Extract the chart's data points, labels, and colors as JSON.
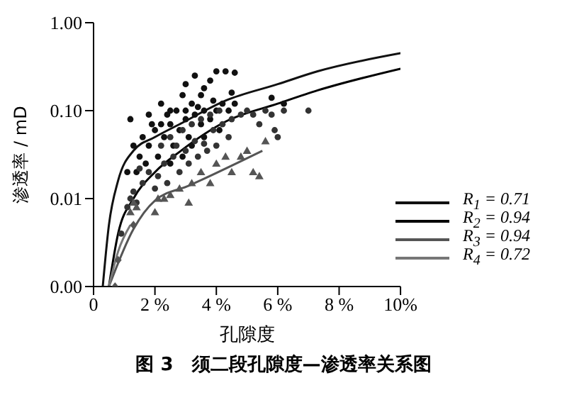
{
  "chart_data": {
    "type": "scatter",
    "title": "图 3　须二段孔隙度—渗透率关系图",
    "xlabel": "孔隙度",
    "ylabel": "渗透率 / mD",
    "log": "y",
    "xlim": [
      0,
      10
    ],
    "ylim": [
      0.001,
      1
    ],
    "xticks": [
      0,
      {
        "value": 2,
        "label": "2 %"
      },
      {
        "value": 4,
        "label": "4 %"
      },
      {
        "value": 6,
        "label": "6 %"
      },
      {
        "value": 8,
        "label": "8 %"
      },
      {
        "value": 10,
        "label": "10%"
      }
    ],
    "yticks": [
      {
        "value": 0.001,
        "label": "0.00"
      },
      {
        "value": 0.01,
        "label": "0.01"
      },
      {
        "value": 0.1,
        "label": "0.10"
      },
      {
        "value": 1,
        "label": "1.00"
      }
    ],
    "grid": false,
    "legend": "right",
    "series": [
      {
        "marker": "circle",
        "color": "#111111",
        "x": [
          1.2,
          1.8,
          2.2,
          2.5,
          3.0,
          3.3,
          3.6,
          3.8,
          4.0,
          4.3,
          4.6,
          2.9,
          3.2,
          3.5,
          1.3,
          1.5,
          1.6,
          1.8,
          2.0,
          2.1,
          2.3,
          2.5,
          2.6,
          2.8,
          3.0,
          3.1,
          3.3,
          3.5,
          3.6,
          3.8,
          4.0,
          4.2,
          4.4,
          4.6,
          2.4,
          2.7,
          3.0,
          3.4,
          3.9,
          1.9,
          2.2,
          2.9,
          3.6,
          4.5,
          5.8,
          6.2,
          1.1,
          1.4,
          1.7,
          2.5,
          3.2,
          4.1
        ],
        "values": [
          0.08,
          0.09,
          0.12,
          0.1,
          0.2,
          0.25,
          0.18,
          0.22,
          0.28,
          0.28,
          0.27,
          0.15,
          0.12,
          0.15,
          0.04,
          0.03,
          0.05,
          0.04,
          0.06,
          0.03,
          0.05,
          0.07,
          0.04,
          0.06,
          0.08,
          0.05,
          0.09,
          0.07,
          0.1,
          0.08,
          0.1,
          0.12,
          0.1,
          0.12,
          0.09,
          0.1,
          0.1,
          0.11,
          0.13,
          0.07,
          0.07,
          0.03,
          0.05,
          0.16,
          0.14,
          0.12,
          0.02,
          0.02,
          0.025,
          0.025,
          0.04,
          0.06
        ]
      },
      {
        "marker": "circle",
        "color": "#333333",
        "x": [
          0.9,
          1.1,
          1.2,
          1.3,
          1.4,
          1.6,
          1.8,
          2.0,
          2.1,
          2.3,
          2.4,
          2.6,
          2.8,
          3.0,
          3.1,
          3.3,
          3.4,
          3.6,
          3.7,
          3.9,
          4.0,
          4.2,
          4.4,
          4.5,
          4.8,
          5.0,
          5.2,
          5.4,
          5.6,
          5.8,
          5.9,
          6.0,
          6.2,
          7.0,
          2.5,
          2.9,
          3.2,
          3.5,
          3.8,
          4.1,
          1.5,
          2.2,
          2.7
        ],
        "values": [
          0.004,
          0.008,
          0.01,
          0.012,
          0.009,
          0.015,
          0.02,
          0.013,
          0.018,
          0.025,
          0.015,
          0.03,
          0.02,
          0.035,
          0.025,
          0.045,
          0.03,
          0.042,
          0.035,
          0.06,
          0.04,
          0.07,
          0.05,
          0.08,
          0.09,
          0.1,
          0.09,
          0.07,
          0.1,
          0.09,
          0.06,
          0.05,
          0.1,
          0.1,
          0.05,
          0.06,
          0.07,
          0.08,
          0.09,
          0.1,
          0.022,
          0.04,
          0.04
        ]
      },
      {
        "marker": "triangle",
        "color": "#555555",
        "x": [
          1.2,
          1.3,
          1.4,
          2.0,
          2.1,
          2.3,
          2.5,
          3.1,
          3.2,
          3.8,
          4.0,
          4.3,
          4.5,
          4.8,
          5.0,
          5.2,
          5.4,
          5.6,
          3.5,
          2.8
        ],
        "values": [
          0.007,
          0.009,
          0.008,
          0.007,
          0.01,
          0.01,
          0.011,
          0.009,
          0.015,
          0.015,
          0.025,
          0.03,
          0.02,
          0.03,
          0.035,
          0.02,
          0.018,
          0.045,
          0.02,
          0.013
        ]
      },
      {
        "marker": "diamond",
        "color": "#555555",
        "x": [
          0.7,
          0.8,
          1.3
        ],
        "values": [
          0.001,
          0.002,
          0.005
        ]
      },
      {
        "type": "line",
        "name": "R$_{1}$ = 0.71",
        "color": "#111111",
        "x": [
          0.3,
          0.5,
          0.8,
          1.3,
          2,
          2.8,
          4.3,
          6,
          7.3,
          10
        ],
        "values": [
          0.001,
          0.005,
          0.016,
          0.035,
          0.05,
          0.07,
          0.13,
          0.2,
          0.28,
          0.45
        ]
      },
      {
        "type": "line",
        "name": "R$_{2}$ = 0.94",
        "color": "#000000",
        "x": [
          0.5,
          0.8,
          1.3,
          2,
          2.8,
          4.3,
          6,
          7.3,
          10
        ],
        "values": [
          0.001,
          0.004,
          0.01,
          0.02,
          0.034,
          0.075,
          0.12,
          0.17,
          0.3
        ]
      },
      {
        "type": "line",
        "name": "R$_{3}$ = 0.94",
        "color": "#555555",
        "x": [
          0.5,
          1.3,
          2,
          3.1,
          5.5
        ],
        "values": [
          0.001,
          0.0045,
          0.0095,
          0.014,
          0.035
        ]
      },
      {
        "type": "line",
        "name": "R$_{4}$ = 0.72",
        "color": "#777777",
        "x": [
          0.5,
          0.8,
          1.2
        ],
        "values": [
          0.001,
          0.0025,
          0.005
        ]
      }
    ]
  }
}
